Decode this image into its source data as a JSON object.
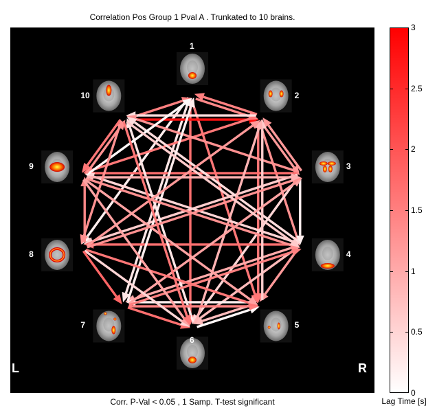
{
  "title": "Correlation Pos Group 1 Pval A          . Trunkated to 10 brains.",
  "footer": "Corr. P-Val < 0.05 , 1 Samp. T-test significant",
  "side_labels": {
    "left": "L",
    "right": "R"
  },
  "nodes": [
    {
      "label": "1",
      "blob": "center-bottom"
    },
    {
      "label": "2",
      "blob": "two-top"
    },
    {
      "label": "3",
      "blob": "horseshoe"
    },
    {
      "label": "4",
      "blob": "posterior"
    },
    {
      "label": "5",
      "blob": "small-right"
    },
    {
      "label": "6",
      "blob": "center-bottom"
    },
    {
      "label": "7",
      "blob": "scattered-right"
    },
    {
      "label": "8",
      "blob": "ring"
    },
    {
      "label": "9",
      "blob": "central-large"
    },
    {
      "label": "10",
      "blob": "top-midline"
    }
  ],
  "edges": [
    {
      "from": 1,
      "to": 6,
      "lag": 1.7
    },
    {
      "from": 1,
      "to": 5,
      "lag": 1.6
    },
    {
      "from": 1,
      "to": 7,
      "lag": 0.3
    },
    {
      "from": 1,
      "to": 8,
      "lag": 0.2
    },
    {
      "from": 10,
      "to": 1,
      "lag": 1.5
    },
    {
      "from": 2,
      "to": 1,
      "lag": 1.5
    },
    {
      "from": 10,
      "to": 2,
      "lag": 2.8
    },
    {
      "from": 1,
      "to": 2,
      "lag": 1.4
    },
    {
      "from": 2,
      "to": 9,
      "lag": 1.6
    },
    {
      "from": 2,
      "to": 4,
      "lag": 1.3
    },
    {
      "from": 2,
      "to": 3,
      "lag": 1.2
    },
    {
      "from": 2,
      "to": 10,
      "lag": 0.4
    },
    {
      "from": 2,
      "to": 5,
      "lag": 1.6
    },
    {
      "from": 3,
      "to": 9,
      "lag": 1.7
    },
    {
      "from": 3,
      "to": 10,
      "lag": 1.3
    },
    {
      "from": 3,
      "to": 2,
      "lag": 1.2
    },
    {
      "from": 3,
      "to": 8,
      "lag": 0.6
    },
    {
      "from": 3,
      "to": 6,
      "lag": 0.5
    },
    {
      "from": 3,
      "to": 4,
      "lag": 0.2
    },
    {
      "from": 4,
      "to": 8,
      "lag": 1.7
    },
    {
      "from": 4,
      "to": 10,
      "lag": 0.4
    },
    {
      "from": 4,
      "to": 9,
      "lag": 0.5
    },
    {
      "from": 4,
      "to": 5,
      "lag": 1.2
    },
    {
      "from": 4,
      "to": 7,
      "lag": 1.0
    },
    {
      "from": 4,
      "to": 6,
      "lag": 0.8
    },
    {
      "from": 5,
      "to": 7,
      "lag": 0.2
    },
    {
      "from": 5,
      "to": 2,
      "lag": 0.6
    },
    {
      "from": 5,
      "to": 6,
      "lag": 0.8
    },
    {
      "from": 6,
      "to": 5,
      "lag": 0.1
    },
    {
      "from": 6,
      "to": 2,
      "lag": 0.9
    },
    {
      "from": 6,
      "to": 10,
      "lag": 0.3
    },
    {
      "from": 7,
      "to": 6,
      "lag": 1.7
    },
    {
      "from": 7,
      "to": 1,
      "lag": 0.2
    },
    {
      "from": 7,
      "to": 3,
      "lag": 1.1
    },
    {
      "from": 7,
      "to": 4,
      "lag": 1.5
    },
    {
      "from": 7,
      "to": 5,
      "lag": 1.5
    },
    {
      "from": 8,
      "to": 9,
      "lag": 1.4
    },
    {
      "from": 8,
      "to": 5,
      "lag": 1.6
    },
    {
      "from": 8,
      "to": 3,
      "lag": 1.3
    },
    {
      "from": 8,
      "to": 2,
      "lag": 1.2
    },
    {
      "from": 8,
      "to": 6,
      "lag": 0.5
    },
    {
      "from": 8,
      "to": 7,
      "lag": 1.8
    },
    {
      "from": 9,
      "to": 4,
      "lag": 1.3
    },
    {
      "from": 9,
      "to": 3,
      "lag": 0.9
    },
    {
      "from": 9,
      "to": 5,
      "lag": 1.1
    },
    {
      "from": 9,
      "to": 6,
      "lag": 1.1
    },
    {
      "from": 9,
      "to": 1,
      "lag": 0.1
    },
    {
      "from": 9,
      "to": 10,
      "lag": 1.3
    },
    {
      "from": 10,
      "to": 9,
      "lag": 1.6
    },
    {
      "from": 10,
      "to": 6,
      "lag": 1.6
    },
    {
      "from": 10,
      "to": 4,
      "lag": 0.6
    },
    {
      "from": 10,
      "to": 8,
      "lag": 1.3
    }
  ],
  "colorbar": {
    "label": "Lag Time [s]",
    "min": 0,
    "max": 3,
    "ticks": [
      "0",
      "0.5",
      "1",
      "1.5",
      "2",
      "2.5",
      "3"
    ],
    "color_low": "#ffffff",
    "color_high": "#ff0000"
  }
}
